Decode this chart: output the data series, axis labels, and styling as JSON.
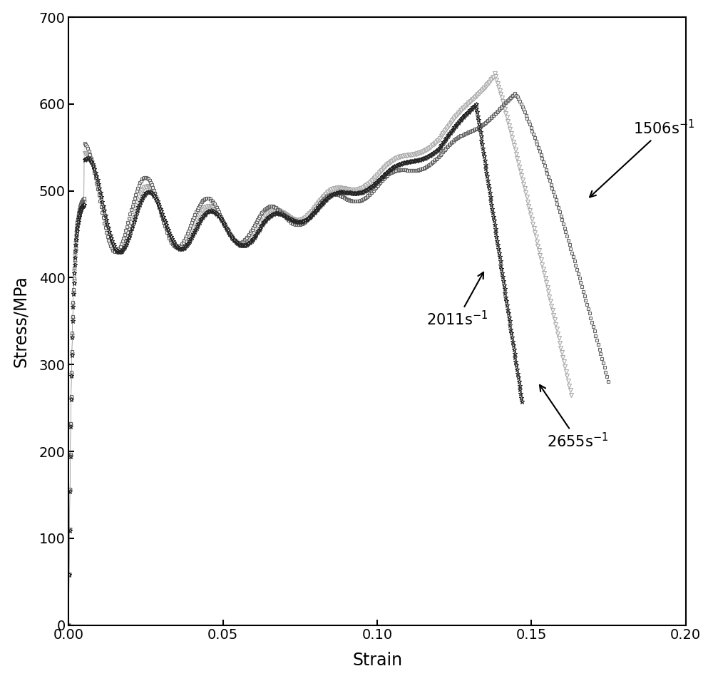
{
  "xlabel": "Strain",
  "ylabel": "Stress/MPa",
  "xlim": [
    0.0,
    0.2
  ],
  "ylim": [
    0,
    700
  ],
  "xticks": [
    0.0,
    0.05,
    0.1,
    0.15,
    0.2
  ],
  "yticks": [
    0,
    100,
    200,
    300,
    400,
    500,
    600,
    700
  ],
  "color_1506": "#666666",
  "color_2011": "#222222",
  "color_2655": "#aaaaaa",
  "marker_1506": "s",
  "marker_2011": "*",
  "marker_2655": "v",
  "markersize_1506": 3.5,
  "markersize_2011": 4.5,
  "markersize_2655": 4.0,
  "linewidth": 0.5,
  "ann_1506_label": "1506s$^{-1}$",
  "ann_2011_label": "2011s$^{-1}$",
  "ann_2655_label": "2655s$^{-1}$"
}
